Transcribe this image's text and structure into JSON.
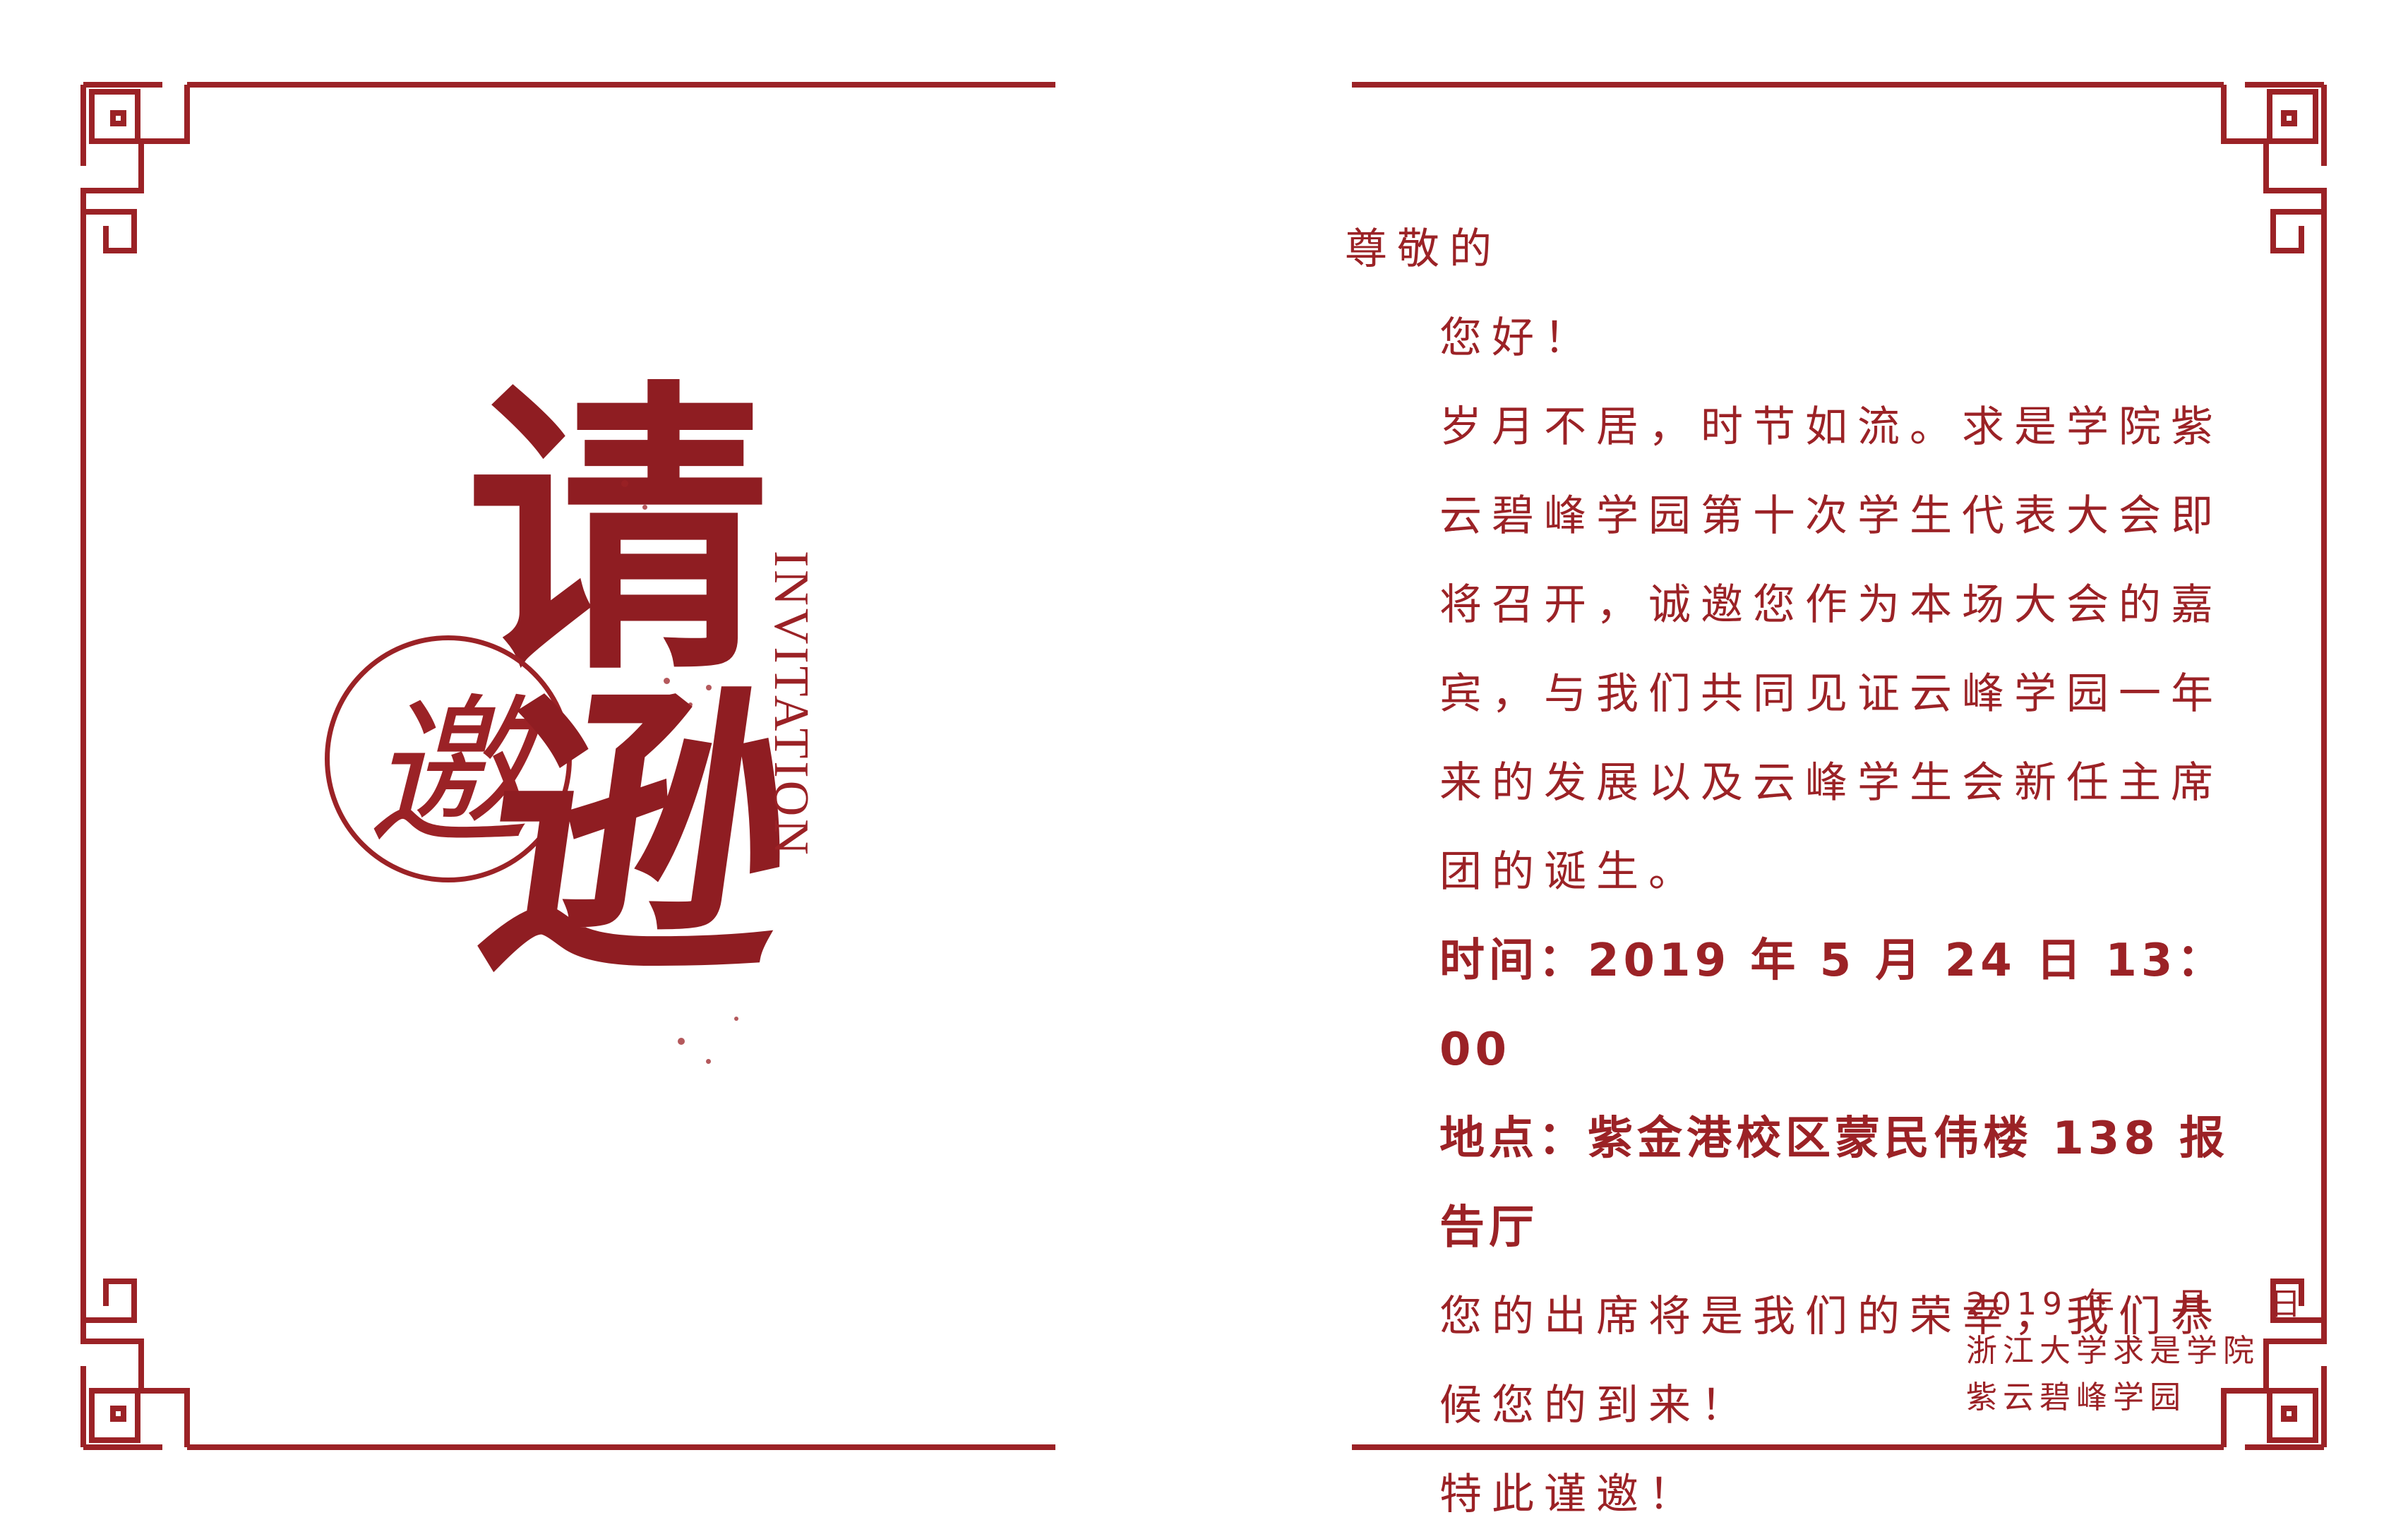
{
  "colors": {
    "accent": "#9b2226",
    "background": "#ffffff"
  },
  "left_panel": {
    "calligraphy": {
      "main_char_1": "请",
      "main_char_2": "逊",
      "seal_char": "邀",
      "english": "INVITATION"
    }
  },
  "letter": {
    "salutation": "尊敬的",
    "greeting": "您好！",
    "body_paragraph": "岁月不居，时节如流。求是学院紫云碧峰学园第十次学生代表大会即将召开，诚邀您作为本场大会的嘉宾，与我们共同见证云峰学园一年来的发展以及云峰学生会新任主席团的诞生。",
    "time_line": "时间：2019 年 5 月 24 日 13：00",
    "place_line": "地点：紫金港校区蒙民伟楼 138 报告厅",
    "closing_paragraph": "您的出席将是我们的荣幸，我们恭候您的到来！",
    "sign_off": "特此谨邀！"
  },
  "signature": {
    "year": "2019 年",
    "month": "月",
    "day": "日",
    "org_line_1": "浙江大学求是学院",
    "org_line_2": "紫云碧峰学园"
  }
}
